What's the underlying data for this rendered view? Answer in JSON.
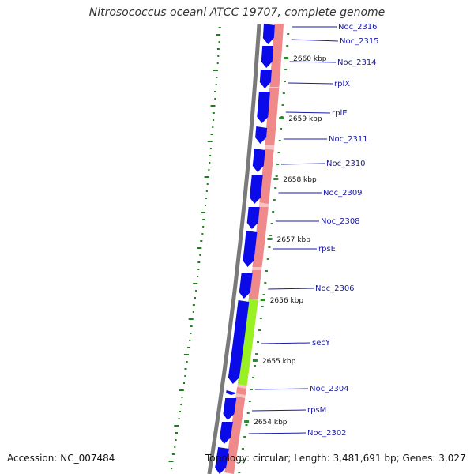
{
  "title": "Nitrosococcus oceani ATCC 19707, complete genome",
  "accession": "Accession: NC_007484",
  "topology": "Topology: circular; Length: 3,481,691 bp; Genes: 3,027",
  "colors": {
    "backbone": "#7a7a7a",
    "forward_gene": "#0b0bea",
    "reverse_gene": "#f08a8a",
    "reverse_track_bg": "#f6c3c3",
    "highlight_gene": "#99f022",
    "gc_plot": "#1d7f1d",
    "label_line": "#1a1aa8",
    "tick": "#2d8a2d"
  },
  "scale": {
    "unit": "kbp",
    "ticks": [
      {
        "value": 2660,
        "label": "2660 kbp"
      },
      {
        "value": 2659,
        "label": "2659 kbp"
      },
      {
        "value": 2658,
        "label": "2658 kbp"
      },
      {
        "value": 2657,
        "label": "2657 kbp"
      },
      {
        "value": 2656,
        "label": "2656 kbp"
      },
      {
        "value": 2655,
        "label": "2655 kbp"
      },
      {
        "value": 2654,
        "label": "2654 kbp"
      }
    ]
  },
  "gene_labels": [
    "Noc_2316",
    "Noc_2315",
    "Noc_2314",
    "rplX",
    "rplE",
    "Noc_2311",
    "Noc_2310",
    "Noc_2309",
    "Noc_2308",
    "rpsE",
    "Noc_2306",
    "secY",
    "Noc_2304",
    "rpsM",
    "Noc_2302"
  ]
}
